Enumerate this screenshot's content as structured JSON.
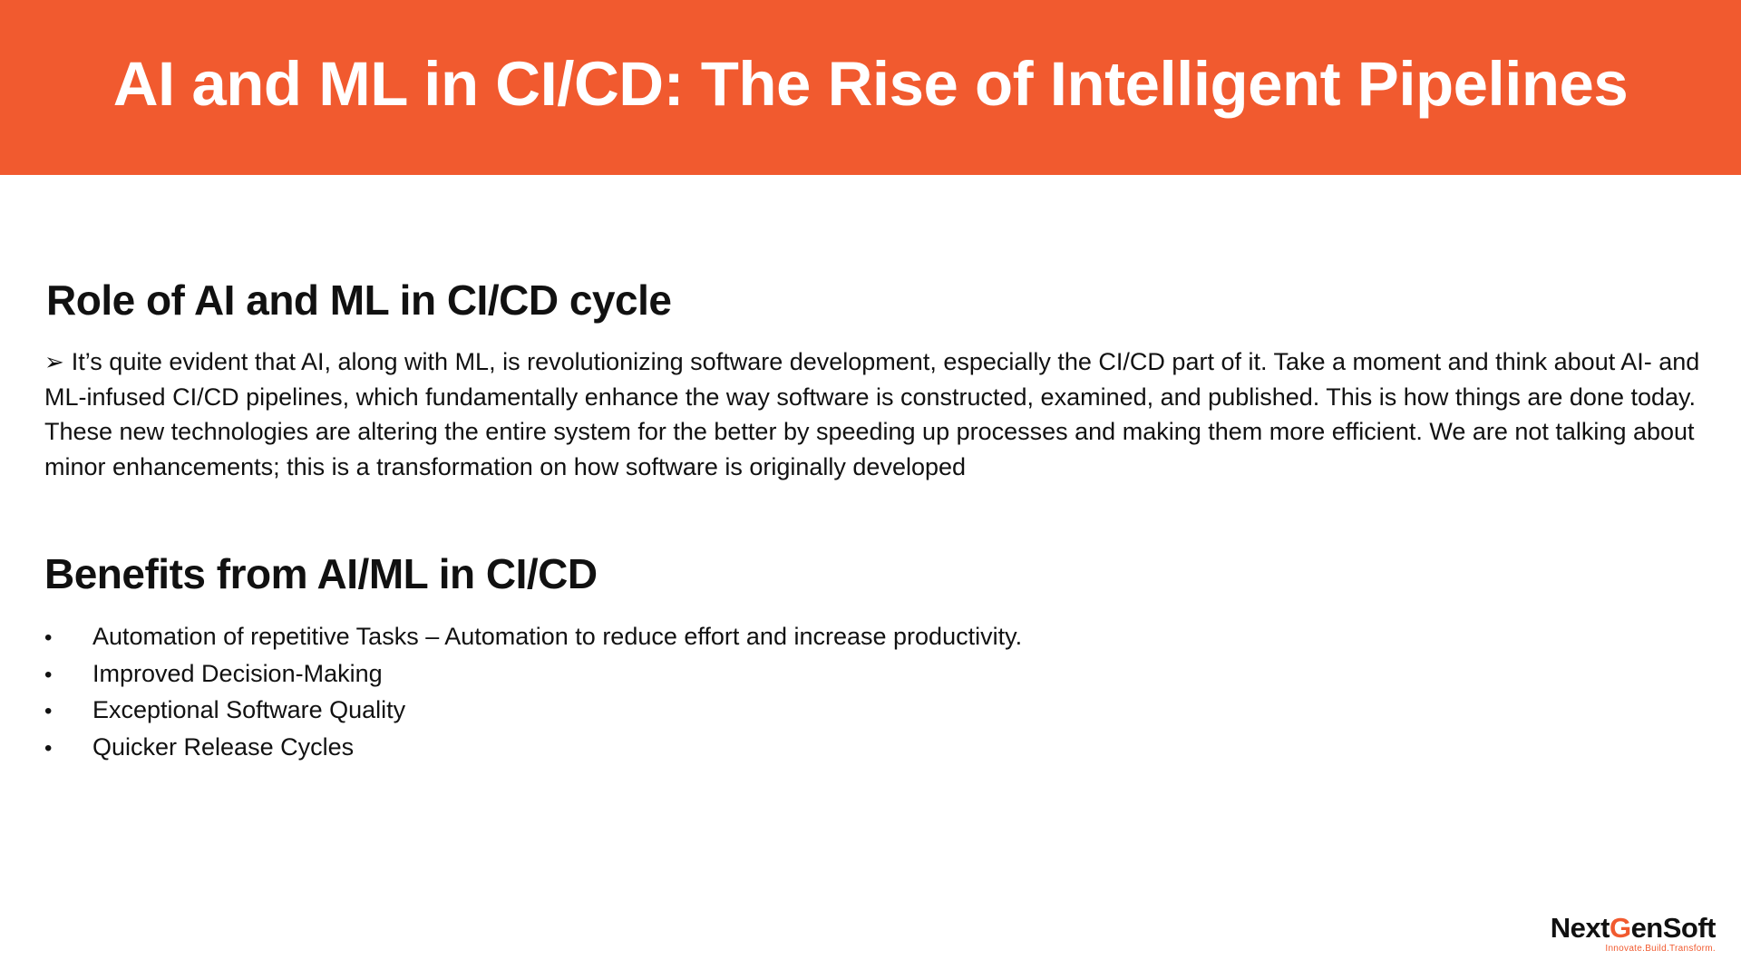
{
  "header": {
    "title": "AI and ML in CI/CD: The Rise of Intelligent Pipelines",
    "background_color": "#f15a2f"
  },
  "role_section": {
    "heading": "Role of AI and ML in CI/CD cycle",
    "arrow_icon": "➢",
    "paragraph": "It’s quite evident that AI, along with ML, is revolutionizing software development, especially the CI/CD part of it. Take a moment and think about AI- and ML-infused CI/CD pipelines, which fundamentally enhance the way software is constructed, examined, and published. This is how things are done today. These new technologies are altering the entire system for the better by speeding up processes and making them more efficient. We are not talking about minor enhancements; this is a transformation on how software is originally developed"
  },
  "benefits_section": {
    "heading": "Benefits from AI/ML in CI/CD",
    "bullet_icon": "•",
    "items": [
      "Automation of repetitive Tasks – Automation to reduce effort and increase productivity.",
      "Improved Decision-Making",
      "Exceptional Software Quality",
      "Quicker Release Cycles"
    ]
  },
  "logo": {
    "name_part1": "Next",
    "name_g": "G",
    "name_part2": "enSoft",
    "tagline": "Innovate.Build.Transform."
  }
}
